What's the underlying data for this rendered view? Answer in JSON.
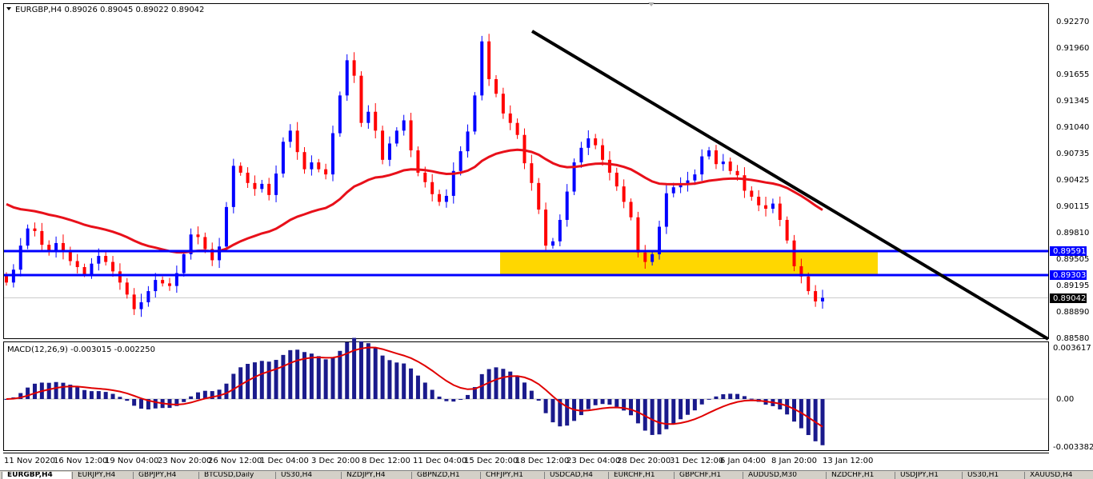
{
  "symbol_header": "EURGBP,H4  0.89026 0.89045 0.89022 0.89042",
  "macd_header": "MACD(12,26,9) -0.003015 -0.002250",
  "colors": {
    "background": "#ffffff",
    "bull_candle": "#0000ff",
    "bear_candle": "#ff0000",
    "moving_average": "#e8101a",
    "levels": "#0000ff",
    "zone": "#ffd700",
    "trendline": "#000000",
    "macd_hist": "#1a1a8c",
    "macd_signal": "#e00000",
    "price_label_bg": "#0000ff",
    "current_label_bg": "#000000"
  },
  "price_axis": [
    "0.92270",
    "0.91960",
    "0.91655",
    "0.91345",
    "0.91040",
    "0.90735",
    "0.90425",
    "0.90115",
    "0.89810",
    "0.89505",
    "0.89195",
    "0.88890",
    "0.88580"
  ],
  "level_labels": {
    "upper": "0.89591",
    "lower": "0.89303",
    "current": "0.89042"
  },
  "macd_axis": [
    "0.003617",
    "0.00",
    "-0.003382"
  ],
  "time_axis": [
    "11 Nov 2020",
    "16 Nov 12:00",
    "19 Nov 04:00",
    "23 Nov 20:00",
    "26 Nov 12:00",
    "1 Dec 04:00",
    "3 Dec 20:00",
    "8 Dec 12:00",
    "11 Dec 04:00",
    "15 Dec 20:00",
    "18 Dec 12:00",
    "23 Dec 04:00",
    "28 Dec 20:00",
    "31 Dec 12:00",
    "6 Jan 04:00",
    "8 Jan 20:00",
    "13 Jan 12:00"
  ],
  "tabs": [
    "EURGBP,H4",
    "EURJPY,H4",
    "GBPJPY,H4",
    "BTCUSD,Daily",
    "US30,H4",
    "NZDJPY,H4",
    "GBPNZD,H1",
    "CHFJPY,H1",
    "USDCAD,H4",
    "EURCHF,H1",
    "GBPCHF,H1",
    "AUDUSD,M30",
    "NZDCHF,H1",
    "USDJPY,H1",
    "US30,H1",
    "XAUUSD,H4"
  ],
  "chart_data": {
    "type": "candlestick",
    "ylim": [
      0.8858,
      0.9227
    ],
    "closes": [
      0.8922,
      0.8937,
      0.8965,
      0.8985,
      0.8982,
      0.8966,
      0.8958,
      0.8968,
      0.8958,
      0.8947,
      0.894,
      0.8932,
      0.8944,
      0.8953,
      0.8946,
      0.8935,
      0.8922,
      0.8908,
      0.8891,
      0.8899,
      0.8912,
      0.8925,
      0.8921,
      0.8918,
      0.8933,
      0.8955,
      0.8978,
      0.8975,
      0.8961,
      0.8948,
      0.8964,
      0.901,
      0.9058,
      0.905,
      0.9038,
      0.9031,
      0.9037,
      0.9024,
      0.9049,
      0.9086,
      0.9099,
      0.9074,
      0.9054,
      0.9062,
      0.9054,
      0.9048,
      0.9096,
      0.914,
      0.9181,
      0.9163,
      0.9108,
      0.9121,
      0.9099,
      0.9065,
      0.9084,
      0.9099,
      0.9111,
      0.9076,
      0.905,
      0.9039,
      0.9025,
      0.9016,
      0.9023,
      0.9052,
      0.9075,
      0.9098,
      0.914,
      0.9203,
      0.9159,
      0.9142,
      0.9119,
      0.9108,
      0.9094,
      0.9061,
      0.9038,
      0.9007,
      0.8965,
      0.897,
      0.8995,
      0.9028,
      0.9062,
      0.9079,
      0.909,
      0.9082,
      0.9065,
      0.905,
      0.9034,
      0.9016,
      0.8998,
      0.8957,
      0.8946,
      0.8955,
      0.8987,
      0.9026,
      0.9033,
      0.9037,
      0.9041,
      0.9048,
      0.9069,
      0.9076,
      0.906,
      0.9063,
      0.9052,
      0.9047,
      0.9029,
      0.9022,
      0.9012,
      0.9008,
      0.9014,
      0.8995,
      0.8971,
      0.8941,
      0.8929,
      0.8912,
      0.89,
      0.89042
    ],
    "moving_average_start": 0.9018,
    "horizontal_levels": [
      0.89591,
      0.89303
    ],
    "current_price": 0.89042,
    "macd_ylim": [
      -0.003382,
      0.003617
    ]
  }
}
